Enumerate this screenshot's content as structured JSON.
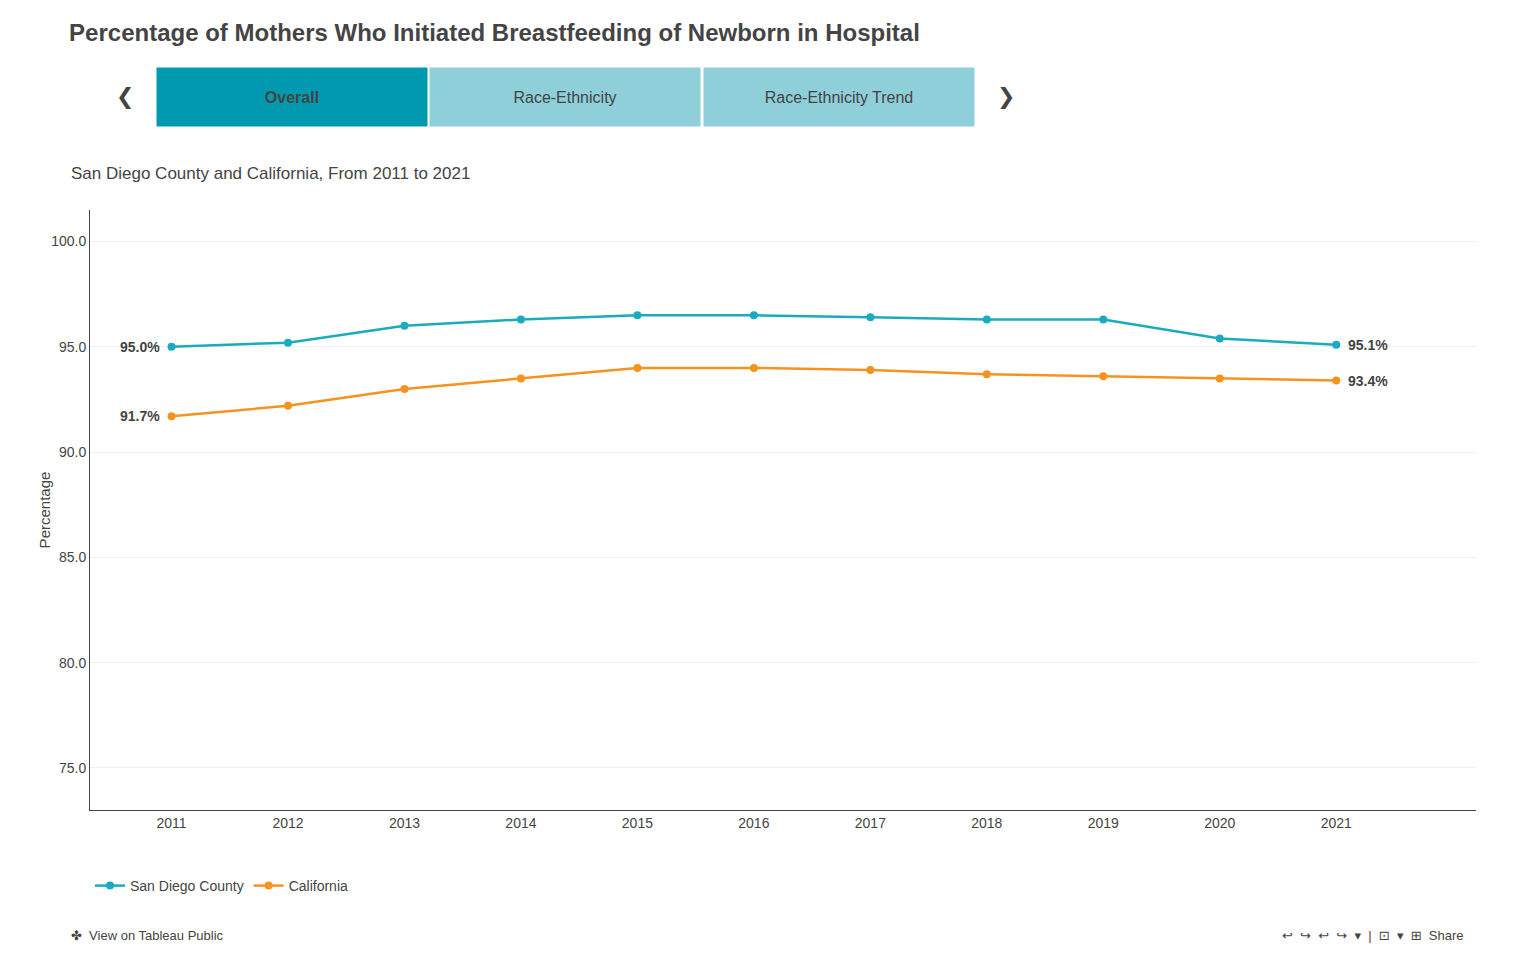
{
  "chart_data": {
    "type": "line",
    "title": "Percentage of Mothers Who Initiated Breastfeeding of Newborn in Hospital",
    "subtitle": "San Diego County and California, From 2011 to 2021",
    "x": [
      2011,
      2012,
      2013,
      2014,
      2015,
      2016,
      2017,
      2018,
      2019,
      2020,
      2021
    ],
    "series": [
      {
        "name": "San Diego County",
        "color": "#1aacbe",
        "marker": "circle",
        "line_style": "solid",
        "values": [
          95.0,
          95.2,
          96.0,
          96.3,
          96.5,
          96.5,
          96.4,
          96.3,
          96.3,
          95.4,
          95.1
        ]
      },
      {
        "name": "California",
        "color": "#f5931e",
        "marker": "circle",
        "line_style": "solid",
        "values": [
          91.7,
          92.2,
          93.0,
          93.5,
          94.0,
          94.0,
          93.9,
          93.7,
          93.6,
          93.5,
          93.4
        ]
      }
    ],
    "xlim": [
      2010.3,
      2022.2
    ],
    "xticks": [
      2011,
      2012,
      2013,
      2014,
      2015,
      2016,
      2017,
      2018,
      2019,
      2020,
      2021
    ],
    "ylim": [
      73.0,
      101.5
    ],
    "yticks": [
      {
        "value": 75.0,
        "label": "75.0"
      },
      {
        "value": 80.0,
        "label": "80.0"
      },
      {
        "value": 85.0,
        "label": "85.0"
      },
      {
        "value": 90.0,
        "label": "90.0"
      },
      {
        "value": 95.0,
        "label": "95.0"
      },
      {
        "value": 100.0,
        "label": "100.0"
      }
    ],
    "ylabel": "Percentage",
    "grid": "y",
    "legend": "bottom",
    "annotations": [
      {
        "text": "95.0%",
        "x": 2011,
        "y": 95.0
      },
      {
        "text": "91.7%",
        "x": 2011,
        "y": 91.7
      },
      {
        "text": "95.1%",
        "x": 2021,
        "y": 95.1
      },
      {
        "text": "93.4%",
        "x": 2021,
        "y": 93.4
      }
    ],
    "tabs": [
      {
        "text": "Overall",
        "color": "#0099b0"
      },
      {
        "text": "Race-Ethnicity",
        "color": "#8ecfda"
      },
      {
        "text": "Race-Ethnicity Trend",
        "color": "#8ecfda"
      }
    ],
    "nav": [
      "❮",
      "❯"
    ],
    "footer": [
      "✤  View on Tableau Public",
      "↩  ↪  ↩  ↪  ▾  |  ⊡  ▾  ⊞  Share"
    ]
  }
}
